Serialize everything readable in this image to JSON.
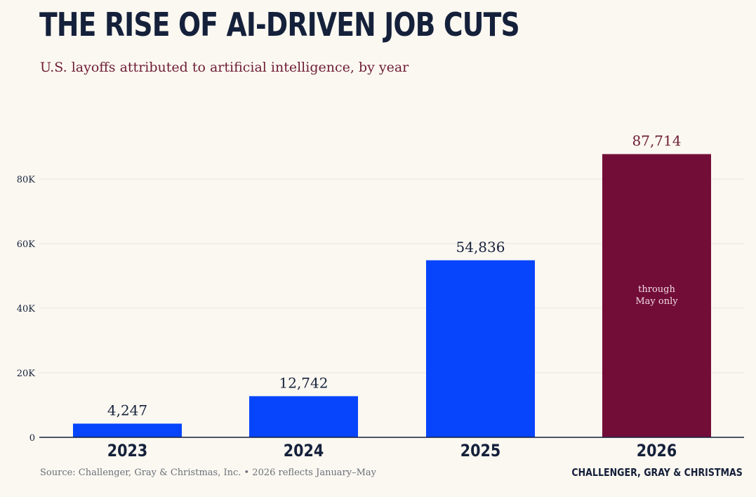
{
  "header": {
    "title": "THE RISE OF AI-DRIVEN JOB CUTS",
    "subtitle": "U.S. layoffs attributed to artificial intelligence, by year"
  },
  "footer": {
    "source": "Source: Challenger, Gray & Christmas, Inc.  •  2026 reflects January–May",
    "brand": "CHALLENGER, GRAY & CHRISTMAS"
  },
  "colors": {
    "background": "#fbf8f1",
    "title": "#15213b",
    "accent": "#6e1c35",
    "bar_primary": "#0645fb",
    "bar_highlight": "#720d38",
    "axis": "#15213b",
    "grid": "#e9e6de",
    "tick_text": "#15213b"
  },
  "chart_data": {
    "type": "bar",
    "title": "THE RISE OF AI-DRIVEN JOB CUTS",
    "subtitle": "U.S. layoffs attributed to artificial intelligence, by year",
    "xlabel": "",
    "ylabel": "",
    "categories": [
      "2023",
      "2024",
      "2025",
      "2026"
    ],
    "values": [
      4247,
      12742,
      54836,
      87714
    ],
    "value_labels": [
      "4,247",
      "12,742",
      "54,836",
      "87,714"
    ],
    "ylim": [
      0,
      90000
    ],
    "yticks": [
      0,
      20000,
      40000,
      60000,
      80000
    ],
    "ytick_labels": [
      "0",
      "20K",
      "40K",
      "60K",
      "80K"
    ],
    "highlight_index": 3,
    "annotation": {
      "category": "2026",
      "lines": [
        "through",
        "May only"
      ]
    },
    "grid": true,
    "legend": "none"
  }
}
